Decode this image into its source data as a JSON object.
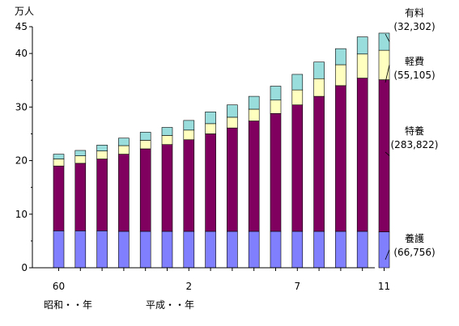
{
  "chart_data": {
    "type": "bar",
    "stacked": true,
    "unit_label": "万人",
    "ylim": [
      0,
      45
    ],
    "yticks": [
      0,
      10,
      20,
      30,
      40,
      45
    ],
    "categories": [
      "60",
      "",
      "",
      "",
      "",
      "",
      "2",
      "",
      "",
      "",
      "",
      "7",
      "",
      "",
      "",
      "11"
    ],
    "era_labels": [
      "昭和・・年",
      "平成・・年"
    ],
    "grid": false,
    "series": [
      {
        "name": "養護",
        "color": "#8080ff",
        "values": [
          6.9,
          6.9,
          6.9,
          6.8,
          6.8,
          6.8,
          6.8,
          6.8,
          6.8,
          6.8,
          6.8,
          6.8,
          6.8,
          6.8,
          6.8,
          6.7
        ]
      },
      {
        "name": "特養",
        "color": "#800060",
        "values": [
          12.1,
          12.6,
          13.4,
          14.4,
          15.4,
          16.2,
          17.1,
          18.2,
          19.3,
          20.6,
          22.0,
          23.6,
          25.2,
          27.2,
          28.6,
          28.4
        ]
      },
      {
        "name": "軽費",
        "color": "#ffffc0",
        "values": [
          1.3,
          1.4,
          1.5,
          1.6,
          1.6,
          1.7,
          1.8,
          1.9,
          2.0,
          2.2,
          2.5,
          2.8,
          3.3,
          3.9,
          4.5,
          5.5
        ]
      },
      {
        "name": "有料",
        "color": "#99dddd",
        "values": [
          0.9,
          1.0,
          1.1,
          1.4,
          1.5,
          1.5,
          1.8,
          2.2,
          2.3,
          2.4,
          2.6,
          2.9,
          3.1,
          3.0,
          3.2,
          3.2
        ]
      }
    ],
    "annotations": [
      {
        "series": "有料",
        "label": "有料",
        "value": "(32,302)"
      },
      {
        "series": "軽費",
        "label": "軽費",
        "value": "(55,105)"
      },
      {
        "series": "特養",
        "label": "特養",
        "value": "(283,822)"
      },
      {
        "series": "養護",
        "label": "養護",
        "value": "(66,756)"
      }
    ]
  }
}
